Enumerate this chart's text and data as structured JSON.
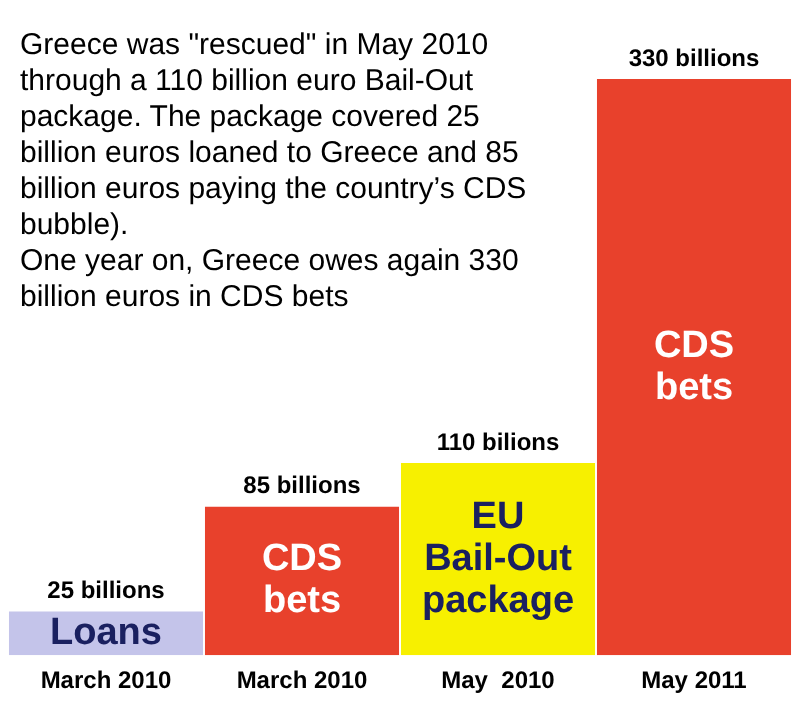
{
  "chart_data": {
    "type": "bar",
    "categories": [
      "March 2010",
      "March 2010",
      "May  2010",
      "May 2011"
    ],
    "values": [
      25,
      85,
      110,
      330
    ],
    "colors": [
      "#c4c4ea",
      "#e8412c",
      "#f7f000",
      "#e8412c"
    ],
    "value_labels": [
      "25 billions",
      "85 billions",
      "110 bilions",
      "330 billions"
    ],
    "annotations": [
      "Greece was \"rescued\" in May 2010 through a 110 billion euro Bail-Out package. The package covered 25 billion euros loaned to Greece and 85 billion euros paying the country’s CDS bubble).\nOne year on, Greece owes again 330 billion euros in CDS bets",
      "Loans",
      "CDS bets",
      "EU Bail-Out package",
      "CDS bets"
    ],
    "grid": false,
    "legend": false
  }
}
